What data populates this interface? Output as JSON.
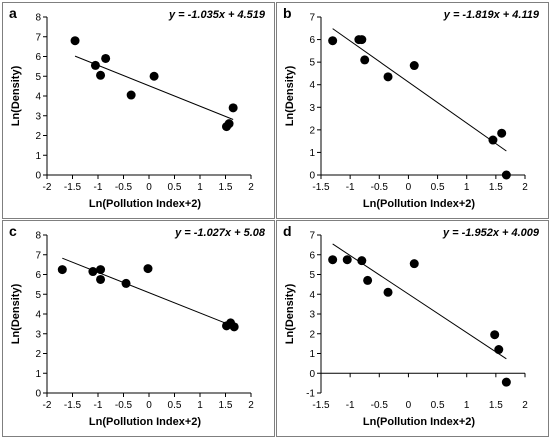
{
  "chart_data": [
    {
      "type": "scatter",
      "panel_label": "a",
      "equation": "y = -1.035x + 4.519",
      "xlabel": "Ln(Pollution Index+2)",
      "ylabel": "Ln(Density)",
      "xlim": [
        -2,
        2
      ],
      "ylim": [
        0,
        8
      ],
      "xticks": [
        "-2",
        "-1.5",
        "-1",
        "-0.5",
        "0",
        "0.5",
        "1",
        "1.5",
        "2"
      ],
      "yticks": [
        "0",
        "1",
        "2",
        "3",
        "4",
        "5",
        "6",
        "7",
        "8"
      ],
      "points": [
        {
          "x": -1.45,
          "y": 6.8
        },
        {
          "x": -1.05,
          "y": 5.55
        },
        {
          "x": -0.95,
          "y": 5.05
        },
        {
          "x": -0.85,
          "y": 5.9
        },
        {
          "x": -0.35,
          "y": 4.05
        },
        {
          "x": 0.1,
          "y": 5.0
        },
        {
          "x": 1.52,
          "y": 2.45
        },
        {
          "x": 1.57,
          "y": 2.6
        },
        {
          "x": 1.65,
          "y": 3.4
        }
      ],
      "fit": {
        "slope": -1.035,
        "intercept": 4.519,
        "x_range": [
          -1.45,
          1.65
        ]
      }
    },
    {
      "type": "scatter",
      "panel_label": "b",
      "equation": "y = -1.819x + 4.119",
      "xlabel": "Ln(Pollution Index+2)",
      "ylabel": "Ln(Density)",
      "xlim": [
        -1.5,
        2
      ],
      "ylim": [
        0,
        7
      ],
      "xticks": [
        "-1.5",
        "-1",
        "-0.5",
        "0",
        "0.5",
        "1",
        "1.5",
        "2"
      ],
      "yticks": [
        "0",
        "1",
        "2",
        "3",
        "4",
        "5",
        "6",
        "7"
      ],
      "points": [
        {
          "x": -1.3,
          "y": 5.95
        },
        {
          "x": -0.85,
          "y": 6.0
        },
        {
          "x": -0.8,
          "y": 6.0
        },
        {
          "x": -0.75,
          "y": 5.1
        },
        {
          "x": -0.35,
          "y": 4.35
        },
        {
          "x": 0.1,
          "y": 4.85
        },
        {
          "x": 1.45,
          "y": 1.55
        },
        {
          "x": 1.6,
          "y": 1.85
        },
        {
          "x": 1.68,
          "y": 0.0
        }
      ],
      "fit": {
        "slope": -1.819,
        "intercept": 4.119,
        "x_range": [
          -1.3,
          1.68
        ]
      }
    },
    {
      "type": "scatter",
      "panel_label": "c",
      "equation": "y = -1.027x + 5.08",
      "xlabel": "Ln(Pollution Index+2)",
      "ylabel": "Ln(Density)",
      "xlim": [
        -2,
        2
      ],
      "ylim": [
        0,
        8
      ],
      "xticks": [
        "-2",
        "-1.5",
        "-1",
        "-0.5",
        "0",
        "0.5",
        "1",
        "1.5",
        "2"
      ],
      "yticks": [
        "0",
        "1",
        "2",
        "3",
        "4",
        "5",
        "6",
        "7",
        "8"
      ],
      "points": [
        {
          "x": -1.7,
          "y": 6.25
        },
        {
          "x": -1.1,
          "y": 6.15
        },
        {
          "x": -0.95,
          "y": 6.25
        },
        {
          "x": -0.95,
          "y": 5.75
        },
        {
          "x": -0.45,
          "y": 5.55
        },
        {
          "x": -0.02,
          "y": 6.3
        },
        {
          "x": 1.52,
          "y": 3.4
        },
        {
          "x": 1.6,
          "y": 3.55
        },
        {
          "x": 1.67,
          "y": 3.35
        }
      ],
      "fit": {
        "slope": -1.027,
        "intercept": 5.08,
        "x_range": [
          -1.7,
          1.67
        ]
      }
    },
    {
      "type": "scatter",
      "panel_label": "d",
      "equation": "y = -1.952x + 4.009",
      "xlabel": "Ln(Pollution Index+2)",
      "ylabel": "Ln(Density)",
      "xlim": [
        -1.5,
        2
      ],
      "ylim": [
        -1,
        7
      ],
      "xticks": [
        "-1.5",
        "-1",
        "-0.5",
        "0",
        "0.5",
        "1",
        "1.5",
        "2"
      ],
      "yticks": [
        "-1",
        "0",
        "1",
        "2",
        "3",
        "4",
        "5",
        "6",
        "7"
      ],
      "points": [
        {
          "x": -1.3,
          "y": 5.75
        },
        {
          "x": -1.05,
          "y": 5.75
        },
        {
          "x": -0.8,
          "y": 5.7
        },
        {
          "x": -0.7,
          "y": 4.7
        },
        {
          "x": -0.35,
          "y": 4.1
        },
        {
          "x": 0.1,
          "y": 5.55
        },
        {
          "x": 1.48,
          "y": 1.95
        },
        {
          "x": 1.55,
          "y": 1.2
        },
        {
          "x": 1.68,
          "y": -0.45
        }
      ],
      "fit": {
        "slope": -1.952,
        "intercept": 4.009,
        "x_range": [
          -1.3,
          1.68
        ]
      }
    }
  ]
}
